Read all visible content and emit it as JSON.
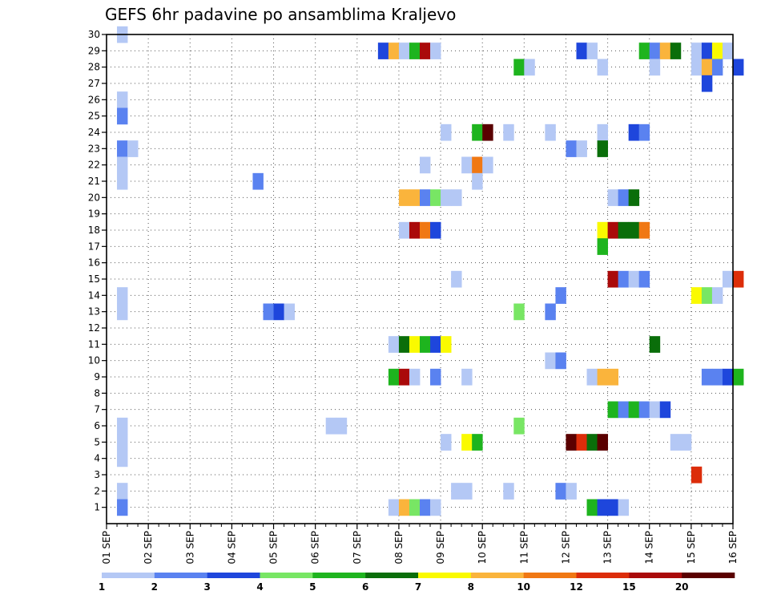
{
  "chart_data": {
    "type": "heatmap",
    "title": "GEFS 6hr padavine po ansamblima Kraljevo",
    "xlabel": "",
    "ylabel": "",
    "x_tick_labels": [
      "01 SEP",
      "02 SEP",
      "03 SEP",
      "04 SEP",
      "05 SEP",
      "06 SEP",
      "07 SEP",
      "08 SEP",
      "09 SEP",
      "10 SEP",
      "11 SEP",
      "12 SEP",
      "13 SEP",
      "14 SEP",
      "15 SEP",
      "16 SEP"
    ],
    "y_tick_labels": [
      "1",
      "2",
      "3",
      "4",
      "5",
      "6",
      "7",
      "8",
      "9",
      "10",
      "11",
      "12",
      "13",
      "14",
      "15",
      "16",
      "17",
      "18",
      "19",
      "20",
      "21",
      "22",
      "23",
      "24",
      "25",
      "26",
      "27",
      "28",
      "29",
      "30"
    ],
    "y_range": [
      0,
      30
    ],
    "time_steps_per_day": 4,
    "grid": "dotted",
    "legend": {
      "placement": "bottom",
      "labels": [
        "1",
        "2",
        "3",
        "4",
        "5",
        "6",
        "7",
        "8",
        "10",
        "12",
        "15",
        "20"
      ],
      "colors": [
        "#b4c8f5",
        "#5a82f0",
        "#1e46dc",
        "#78e664",
        "#1eb41e",
        "#0a6e0a",
        "#fafa00",
        "#fab43c",
        "#f07814",
        "#dc2d0a",
        "#aa0a0a",
        "#5a0000"
      ]
    },
    "cells": [
      {
        "m": 30,
        "t": 1,
        "v": 1
      },
      {
        "m": 29,
        "t": 26,
        "v": 3
      },
      {
        "m": 29,
        "t": 27,
        "v": 8
      },
      {
        "m": 29,
        "t": 28,
        "v": 1
      },
      {
        "m": 29,
        "t": 29,
        "v": 5
      },
      {
        "m": 29,
        "t": 30,
        "v": 15
      },
      {
        "m": 29,
        "t": 31,
        "v": 1
      },
      {
        "m": 29,
        "t": 45,
        "v": 3
      },
      {
        "m": 29,
        "t": 46,
        "v": 1
      },
      {
        "m": 29,
        "t": 51,
        "v": 5
      },
      {
        "m": 29,
        "t": 52,
        "v": 2
      },
      {
        "m": 29,
        "t": 53,
        "v": 8
      },
      {
        "m": 29,
        "t": 54,
        "v": 6
      },
      {
        "m": 29,
        "t": 56,
        "v": 1
      },
      {
        "m": 29,
        "t": 57,
        "v": 3
      },
      {
        "m": 29,
        "t": 58,
        "v": 7
      },
      {
        "m": 29,
        "t": 59,
        "v": 1
      },
      {
        "m": 28,
        "t": 39,
        "v": 5
      },
      {
        "m": 28,
        "t": 40,
        "v": 1
      },
      {
        "m": 28,
        "t": 47,
        "v": 1
      },
      {
        "m": 28,
        "t": 52,
        "v": 1
      },
      {
        "m": 28,
        "t": 56,
        "v": 1
      },
      {
        "m": 28,
        "t": 57,
        "v": 8
      },
      {
        "m": 28,
        "t": 58,
        "v": 2
      },
      {
        "m": 28,
        "t": 60,
        "v": 3
      },
      {
        "m": 27,
        "t": 57,
        "v": 3
      },
      {
        "m": 26,
        "t": 1,
        "v": 1
      },
      {
        "m": 25,
        "t": 1,
        "v": 2
      },
      {
        "m": 24,
        "t": 32,
        "v": 1
      },
      {
        "m": 24,
        "t": 35,
        "v": 5
      },
      {
        "m": 24,
        "t": 36,
        "v": 20
      },
      {
        "m": 24,
        "t": 38,
        "v": 1
      },
      {
        "m": 24,
        "t": 42,
        "v": 1
      },
      {
        "m": 24,
        "t": 47,
        "v": 1
      },
      {
        "m": 24,
        "t": 50,
        "v": 3
      },
      {
        "m": 24,
        "t": 51,
        "v": 2
      },
      {
        "m": 23,
        "t": 1,
        "v": 2
      },
      {
        "m": 23,
        "t": 2,
        "v": 1
      },
      {
        "m": 23,
        "t": 44,
        "v": 2
      },
      {
        "m": 23,
        "t": 45,
        "v": 1
      },
      {
        "m": 23,
        "t": 47,
        "v": 6
      },
      {
        "m": 22,
        "t": 1,
        "v": 1
      },
      {
        "m": 22,
        "t": 30,
        "v": 1
      },
      {
        "m": 22,
        "t": 34,
        "v": 1
      },
      {
        "m": 22,
        "t": 35,
        "v": 10
      },
      {
        "m": 22,
        "t": 36,
        "v": 1
      },
      {
        "m": 21,
        "t": 1,
        "v": 1
      },
      {
        "m": 21,
        "t": 14,
        "v": 2
      },
      {
        "m": 21,
        "t": 35,
        "v": 1
      },
      {
        "m": 20,
        "t": 28,
        "v": 8
      },
      {
        "m": 20,
        "t": 29,
        "v": 8
      },
      {
        "m": 20,
        "t": 30,
        "v": 2
      },
      {
        "m": 20,
        "t": 31,
        "v": 4
      },
      {
        "m": 20,
        "t": 32,
        "v": 1
      },
      {
        "m": 20,
        "t": 33,
        "v": 1
      },
      {
        "m": 20,
        "t": 48,
        "v": 1
      },
      {
        "m": 20,
        "t": 49,
        "v": 2
      },
      {
        "m": 20,
        "t": 50,
        "v": 6
      },
      {
        "m": 18,
        "t": 28,
        "v": 1
      },
      {
        "m": 18,
        "t": 29,
        "v": 15
      },
      {
        "m": 18,
        "t": 30,
        "v": 10
      },
      {
        "m": 18,
        "t": 31,
        "v": 3
      },
      {
        "m": 18,
        "t": 47,
        "v": 7
      },
      {
        "m": 18,
        "t": 48,
        "v": 15
      },
      {
        "m": 18,
        "t": 49,
        "v": 6
      },
      {
        "m": 18,
        "t": 50,
        "v": 6
      },
      {
        "m": 18,
        "t": 51,
        "v": 10
      },
      {
        "m": 17,
        "t": 47,
        "v": 5
      },
      {
        "m": 15,
        "t": 33,
        "v": 1
      },
      {
        "m": 15,
        "t": 48,
        "v": 15
      },
      {
        "m": 15,
        "t": 49,
        "v": 2
      },
      {
        "m": 15,
        "t": 50,
        "v": 1
      },
      {
        "m": 15,
        "t": 51,
        "v": 2
      },
      {
        "m": 15,
        "t": 59,
        "v": 1
      },
      {
        "m": 15,
        "t": 60,
        "v": 12
      },
      {
        "m": 14,
        "t": 1,
        "v": 1
      },
      {
        "m": 14,
        "t": 43,
        "v": 2
      },
      {
        "m": 14,
        "t": 56,
        "v": 7
      },
      {
        "m": 14,
        "t": 57,
        "v": 4
      },
      {
        "m": 14,
        "t": 58,
        "v": 1
      },
      {
        "m": 13,
        "t": 1,
        "v": 1
      },
      {
        "m": 13,
        "t": 15,
        "v": 2
      },
      {
        "m": 13,
        "t": 16,
        "v": 3
      },
      {
        "m": 13,
        "t": 17,
        "v": 1
      },
      {
        "m": 13,
        "t": 39,
        "v": 4
      },
      {
        "m": 13,
        "t": 42,
        "v": 2
      },
      {
        "m": 11,
        "t": 27,
        "v": 1
      },
      {
        "m": 11,
        "t": 28,
        "v": 6
      },
      {
        "m": 11,
        "t": 29,
        "v": 7
      },
      {
        "m": 11,
        "t": 30,
        "v": 5
      },
      {
        "m": 11,
        "t": 31,
        "v": 3
      },
      {
        "m": 11,
        "t": 32,
        "v": 7
      },
      {
        "m": 11,
        "t": 52,
        "v": 6
      },
      {
        "m": 10,
        "t": 42,
        "v": 1
      },
      {
        "m": 10,
        "t": 43,
        "v": 2
      },
      {
        "m": 9,
        "t": 27,
        "v": 5
      },
      {
        "m": 9,
        "t": 28,
        "v": 15
      },
      {
        "m": 9,
        "t": 29,
        "v": 1
      },
      {
        "m": 9,
        "t": 31,
        "v": 2
      },
      {
        "m": 9,
        "t": 34,
        "v": 1
      },
      {
        "m": 9,
        "t": 46,
        "v": 1
      },
      {
        "m": 9,
        "t": 47,
        "v": 8
      },
      {
        "m": 9,
        "t": 48,
        "v": 8
      },
      {
        "m": 9,
        "t": 57,
        "v": 2
      },
      {
        "m": 9,
        "t": 58,
        "v": 2
      },
      {
        "m": 9,
        "t": 59,
        "v": 3
      },
      {
        "m": 9,
        "t": 60,
        "v": 5
      },
      {
        "m": 7,
        "t": 48,
        "v": 5
      },
      {
        "m": 7,
        "t": 49,
        "v": 2
      },
      {
        "m": 7,
        "t": 50,
        "v": 5
      },
      {
        "m": 7,
        "t": 51,
        "v": 2
      },
      {
        "m": 7,
        "t": 52,
        "v": 1
      },
      {
        "m": 7,
        "t": 53,
        "v": 3
      },
      {
        "m": 6,
        "t": 1,
        "v": 1
      },
      {
        "m": 6,
        "t": 21,
        "v": 1
      },
      {
        "m": 6,
        "t": 22,
        "v": 1
      },
      {
        "m": 6,
        "t": 39,
        "v": 4
      },
      {
        "m": 5,
        "t": 1,
        "v": 1
      },
      {
        "m": 5,
        "t": 32,
        "v": 1
      },
      {
        "m": 5,
        "t": 34,
        "v": 7
      },
      {
        "m": 5,
        "t": 35,
        "v": 5
      },
      {
        "m": 5,
        "t": 44,
        "v": 20
      },
      {
        "m": 5,
        "t": 45,
        "v": 12
      },
      {
        "m": 5,
        "t": 46,
        "v": 6
      },
      {
        "m": 5,
        "t": 47,
        "v": 20
      },
      {
        "m": 5,
        "t": 54,
        "v": 1
      },
      {
        "m": 5,
        "t": 55,
        "v": 1
      },
      {
        "m": 4,
        "t": 1,
        "v": 1
      },
      {
        "m": 3,
        "t": 56,
        "v": 12
      },
      {
        "m": 2,
        "t": 1,
        "v": 1
      },
      {
        "m": 2,
        "t": 33,
        "v": 1
      },
      {
        "m": 2,
        "t": 34,
        "v": 1
      },
      {
        "m": 2,
        "t": 38,
        "v": 1
      },
      {
        "m": 2,
        "t": 43,
        "v": 2
      },
      {
        "m": 2,
        "t": 44,
        "v": 1
      },
      {
        "m": 1,
        "t": 1,
        "v": 2
      },
      {
        "m": 1,
        "t": 27,
        "v": 1
      },
      {
        "m": 1,
        "t": 28,
        "v": 8
      },
      {
        "m": 1,
        "t": 29,
        "v": 4
      },
      {
        "m": 1,
        "t": 30,
        "v": 2
      },
      {
        "m": 1,
        "t": 31,
        "v": 1
      },
      {
        "m": 1,
        "t": 46,
        "v": 5
      },
      {
        "m": 1,
        "t": 47,
        "v": 3
      },
      {
        "m": 1,
        "t": 48,
        "v": 3
      },
      {
        "m": 1,
        "t": 49,
        "v": 1
      }
    ]
  }
}
